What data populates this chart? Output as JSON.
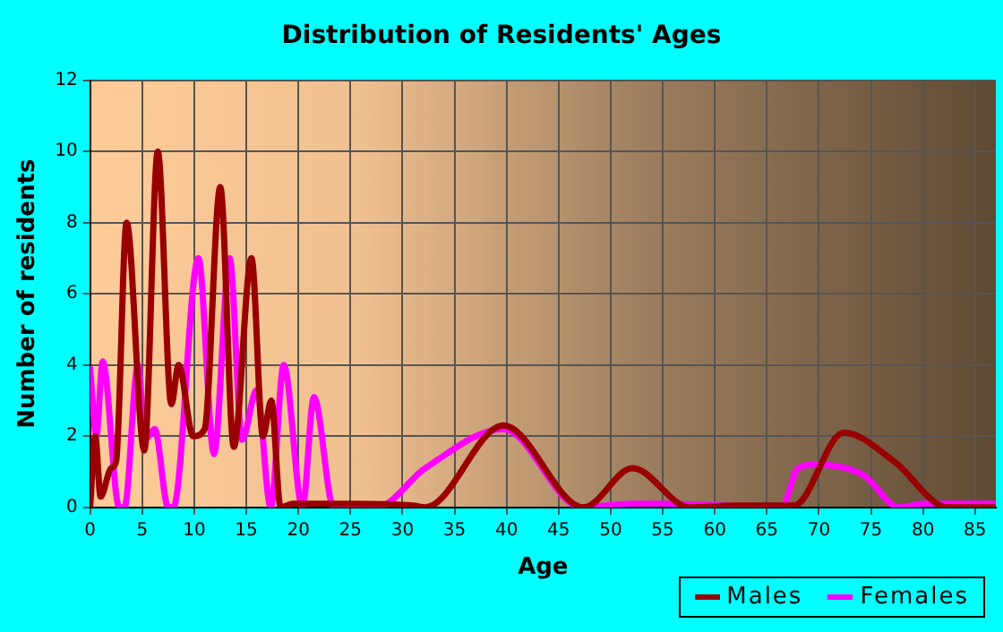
{
  "chart_data": {
    "type": "line",
    "title": "Distribution of Residents' Ages",
    "xlabel": "Age",
    "ylabel": "Number of residents",
    "xlim": [
      0,
      87
    ],
    "xticks": [
      0,
      5,
      10,
      15,
      20,
      25,
      30,
      35,
      40,
      45,
      50,
      55,
      60,
      65,
      70,
      75,
      80,
      85
    ],
    "ylim": [
      0,
      12
    ],
    "yticks": [
      0,
      2,
      4,
      6,
      8,
      10,
      12
    ],
    "grid": true,
    "legend": "bottom right",
    "marker": "none",
    "line_style": "solid",
    "series": [
      {
        "name": "Males",
        "color": "#990000",
        "x": [
          0,
          0.5,
          1,
          2,
          2.5,
          3.5,
          5.2,
          6.5,
          7.8,
          8.5,
          9.9,
          11,
          12.5,
          13.8,
          15.5,
          16.6,
          17.4,
          18.3,
          19.5,
          25,
          31,
          32.2,
          39.7,
          47.4,
          52.1,
          57.6,
          62,
          67.6,
          72.4,
          77.2,
          82.4,
          87
        ],
        "values": [
          0,
          2,
          0.3,
          1.1,
          1.3,
          8,
          1.6,
          10,
          2.9,
          4,
          2,
          2.2,
          9,
          1.7,
          7,
          2,
          3,
          0,
          0.1,
          0.1,
          0.05,
          0,
          2.3,
          0,
          1.1,
          0,
          0.05,
          0.05,
          2.1,
          1.3,
          0,
          0
        ]
      },
      {
        "name": "Females",
        "color": "#ff00ff",
        "x": [
          0,
          0.6,
          1.2,
          2.8,
          3.3,
          4.6,
          5.3,
          6.2,
          7.5,
          8,
          10.4,
          11.9,
          13.4,
          14.6,
          16,
          17.35,
          18.6,
          20.4,
          21.5,
          23.4,
          27.5,
          32.2,
          39.7,
          47.2,
          52,
          55,
          66.4,
          68,
          69.7,
          74.3,
          77.7,
          80,
          87
        ],
        "values": [
          3.9,
          2,
          4.1,
          0,
          0,
          4,
          1.9,
          2.2,
          0,
          0,
          7,
          1.5,
          7,
          1.9,
          3.3,
          0,
          4,
          0,
          3.1,
          0,
          0,
          1.1,
          2.2,
          0,
          0.1,
          0.1,
          0,
          1.1,
          1.2,
          0.9,
          0,
          0.1,
          0.1
        ]
      }
    ]
  }
}
